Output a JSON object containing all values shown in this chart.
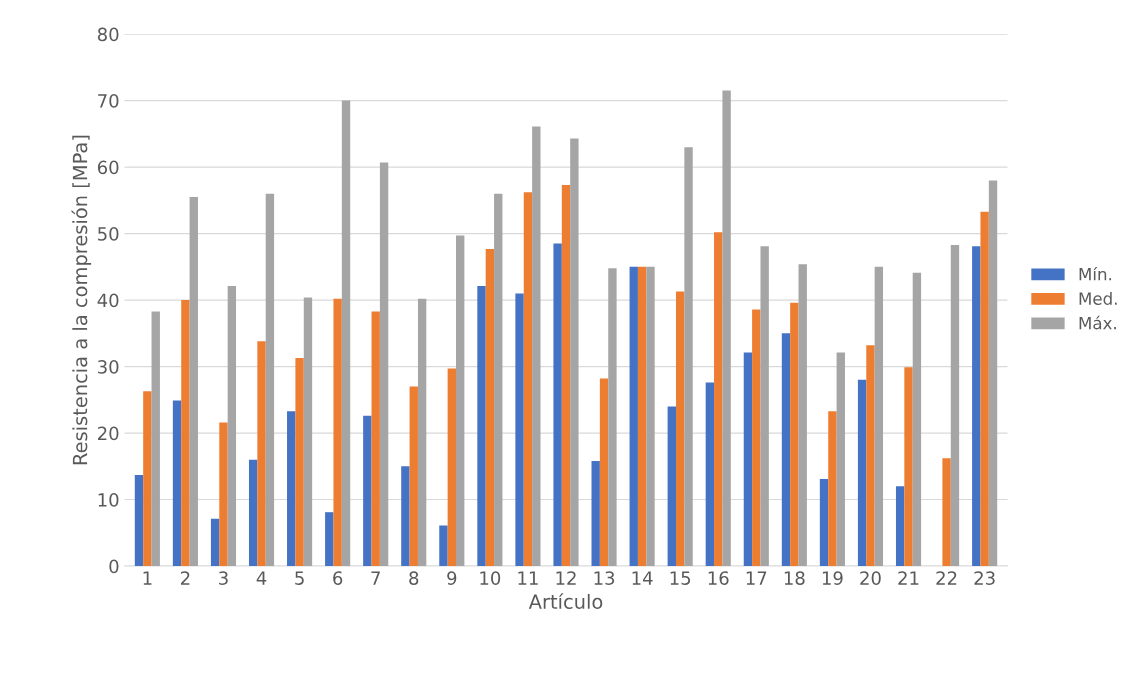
{
  "chart_data": {
    "type": "bar",
    "xlabel": "Artículo",
    "ylabel": "Resistencia a la compresión [MPa]",
    "categories": [
      "1",
      "2",
      "3",
      "4",
      "5",
      "6",
      "7",
      "8",
      "9",
      "10",
      "11",
      "12",
      "13",
      "14",
      "15",
      "16",
      "17",
      "18",
      "19",
      "20",
      "21",
      "22",
      "23"
    ],
    "series": [
      {
        "name": "Mín.",
        "color": "#4472c4",
        "values": [
          13.7,
          24.9,
          7.1,
          16,
          23.3,
          8.1,
          22.6,
          15,
          6.1,
          42.1,
          41,
          48.5,
          15.8,
          45,
          24,
          27.6,
          32.1,
          35,
          13.1,
          28,
          12,
          null,
          48.1
        ]
      },
      {
        "name": "Med.",
        "color": "#ed7d31",
        "values": [
          26.3,
          40,
          21.6,
          33.8,
          31.3,
          40.2,
          38.3,
          27,
          29.7,
          47.7,
          56.2,
          57.3,
          28.2,
          45,
          41.3,
          50.2,
          38.6,
          39.6,
          23.3,
          33.2,
          29.9,
          16.2,
          53.3
        ]
      },
      {
        "name": "Máx.",
        "color": "#a5a5a5",
        "values": [
          38.3,
          55.5,
          42.1,
          56,
          40.4,
          70,
          60.7,
          40.2,
          49.7,
          56,
          66.1,
          64.3,
          44.8,
          45,
          63,
          71.5,
          48.1,
          45.4,
          32.1,
          45,
          44.1,
          48.3,
          58
        ]
      }
    ],
    "ylim": [
      0,
      80
    ],
    "yticks": [
      0,
      10,
      20,
      30,
      40,
      50,
      60,
      70,
      80
    ],
    "grid": "y",
    "legend": "right"
  }
}
